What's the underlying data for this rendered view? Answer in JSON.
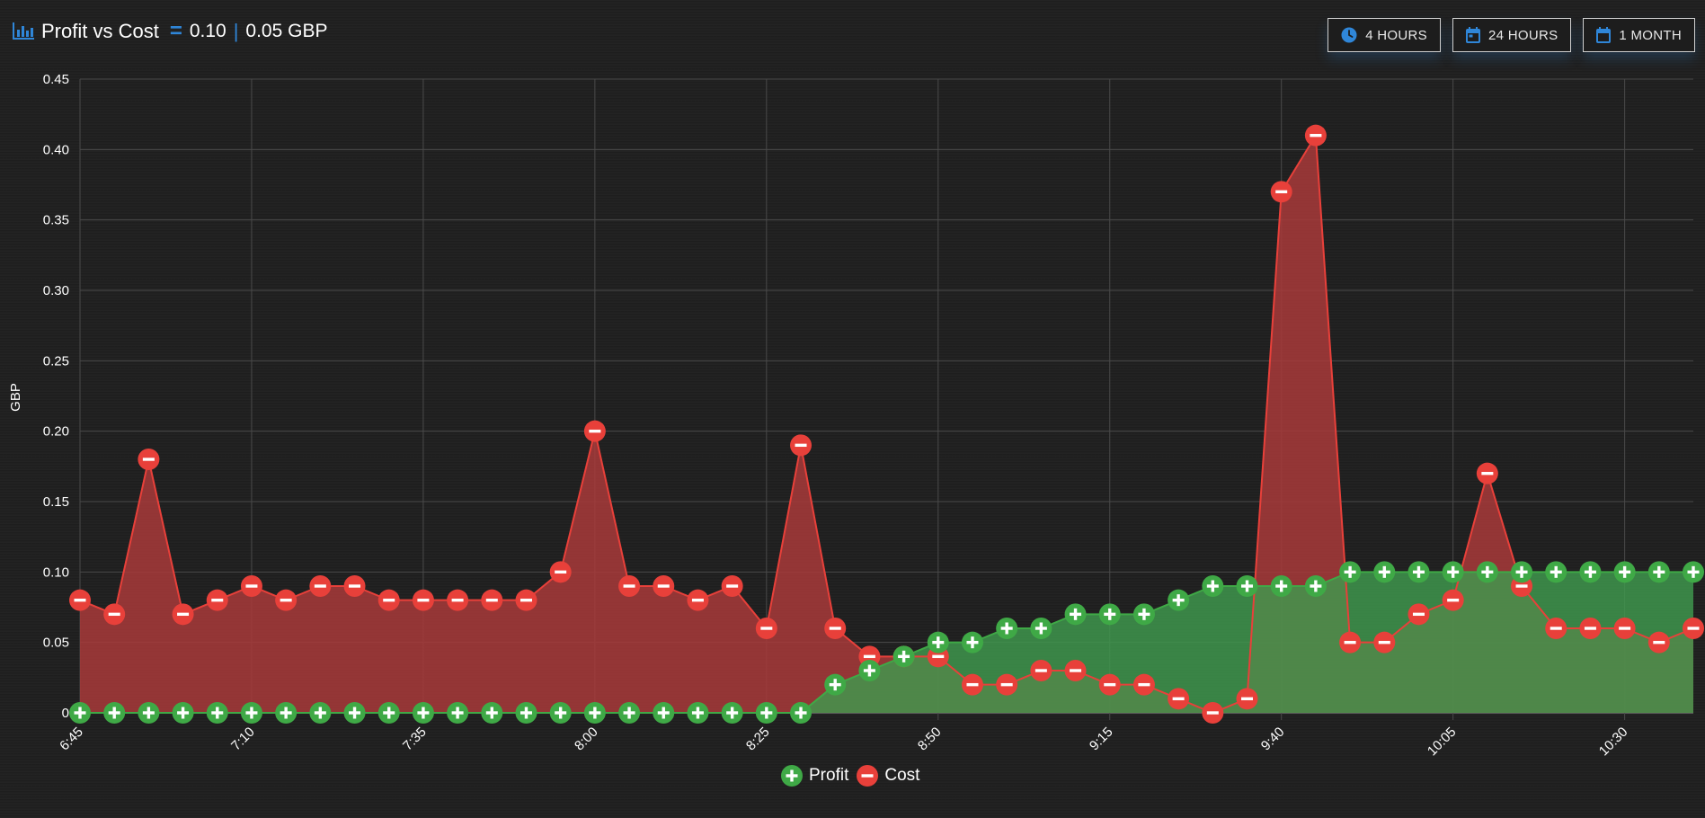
{
  "header": {
    "title": "Profit vs Cost",
    "value_primary": "0.10",
    "value_secondary": "0.05 GBP",
    "chart_icon": "bar-chart-icon",
    "equals_icon": "equals-icon"
  },
  "buttons": [
    {
      "label": "4 HOURS",
      "icon": "clock-icon"
    },
    {
      "label": "24 HOURS",
      "icon": "calendar-icon"
    },
    {
      "label": "1 MONTH",
      "icon": "calendar-icon"
    }
  ],
  "colors": {
    "accent": "#2f86d8",
    "profit": "#3fa946",
    "cost": "#e8403a",
    "profit_fill": "#7cb342",
    "cost_fill": "#a83a3a"
  },
  "chart_data": {
    "type": "area",
    "ylabel": "GBP",
    "ylim": [
      0,
      0.45
    ],
    "yticks": [
      "0",
      "0.05",
      "0.10",
      "0.15",
      "0.20",
      "0.25",
      "0.30",
      "0.35",
      "0.40",
      "0.45"
    ],
    "xtick_labels": [
      "6:45",
      "7:10",
      "7:35",
      "8:00",
      "8:25",
      "8:50",
      "9:15",
      "9:40",
      "10:05",
      "10:30"
    ],
    "x": [
      "6:45",
      "6:50",
      "6:55",
      "7:00",
      "7:05",
      "7:10",
      "7:15",
      "7:20",
      "7:25",
      "7:30",
      "7:35",
      "7:40",
      "7:45",
      "7:50",
      "7:55",
      "8:00",
      "8:05",
      "8:10",
      "8:15",
      "8:20",
      "8:25",
      "8:30",
      "8:35",
      "8:40",
      "8:45",
      "8:50",
      "8:55",
      "9:00",
      "9:05",
      "9:10",
      "9:15",
      "9:20",
      "9:25",
      "9:30",
      "9:35",
      "9:40",
      "9:45",
      "9:50",
      "9:55",
      "10:00",
      "10:05",
      "10:10",
      "10:15",
      "10:20",
      "10:25",
      "10:30",
      "10:35",
      "10:40"
    ],
    "grid": true,
    "legend_position": "bottom",
    "series": [
      {
        "name": "Profit",
        "values": [
          0,
          0,
          0,
          0,
          0,
          0,
          0,
          0,
          0,
          0,
          0,
          0,
          0,
          0,
          0,
          0,
          0,
          0,
          0,
          0,
          0,
          0,
          0.02,
          0.03,
          0.04,
          0.05,
          0.05,
          0.06,
          0.06,
          0.07,
          0.07,
          0.07,
          0.08,
          0.09,
          0.09,
          0.09,
          0.09,
          0.1,
          0.1,
          0.1,
          0.1,
          0.1,
          0.1,
          0.1,
          0.1,
          0.1,
          0.1,
          0.1
        ]
      },
      {
        "name": "Cost",
        "values": [
          0.08,
          0.07,
          0.18,
          0.07,
          0.08,
          0.09,
          0.08,
          0.09,
          0.09,
          0.08,
          0.08,
          0.08,
          0.08,
          0.08,
          0.1,
          0.2,
          0.09,
          0.09,
          0.08,
          0.09,
          0.06,
          0.19,
          0.06,
          0.04,
          0.04,
          0.04,
          0.02,
          0.02,
          0.03,
          0.03,
          0.02,
          0.02,
          0.01,
          0.0,
          0.01,
          0.37,
          0.41,
          0.05,
          0.05,
          0.07,
          0.08,
          0.17,
          0.09,
          0.06,
          0.06,
          0.06,
          0.05,
          0.06
        ]
      }
    ]
  }
}
